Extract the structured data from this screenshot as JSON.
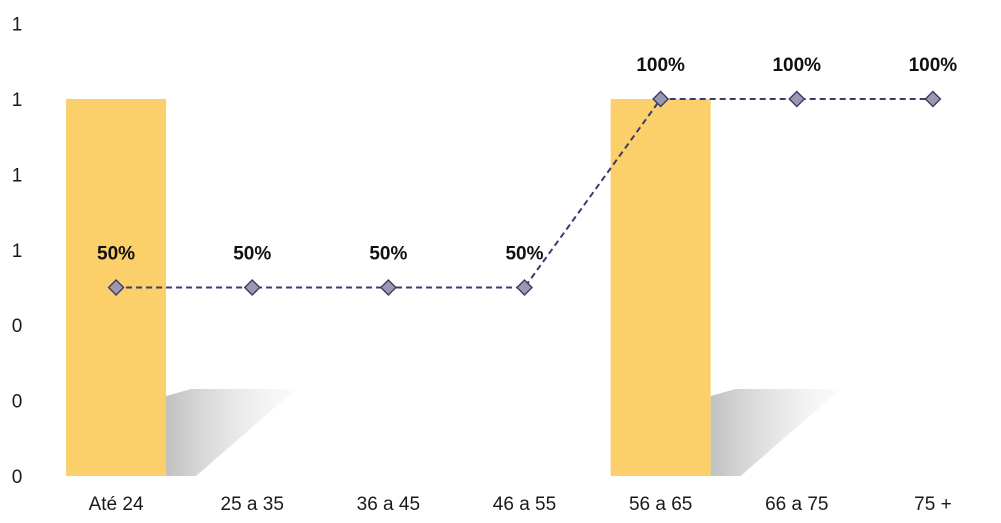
{
  "chart_data": {
    "type": "bar",
    "categories": [
      "Até 24",
      "25 a 35",
      "36 a 45",
      "46 a 55",
      "56 a 65",
      "66 a 75",
      "75 +"
    ],
    "y_tick_labels": [
      "0",
      "0",
      "0",
      "1",
      "1",
      "1",
      "1"
    ],
    "ylim": [
      0,
      1.2
    ],
    "grid": false,
    "legend": "none",
    "series": [
      {
        "type": "bar",
        "values": [
          1,
          0,
          0,
          0,
          1,
          0,
          0
        ],
        "color": "#FBD06B",
        "shadow_color": "#cfcfcf"
      },
      {
        "type": "line",
        "values": [
          0.5,
          0.5,
          0.5,
          0.5,
          1,
          1,
          1
        ],
        "labels": [
          "50%",
          "50%",
          "50%",
          "50%",
          "100%",
          "100%",
          "100%"
        ],
        "line_color": "#3d3a6e",
        "line_style": "dashed",
        "marker": "diamond",
        "marker_fill": "#9b99ad",
        "marker_stroke": "#3d3a6e"
      }
    ]
  }
}
